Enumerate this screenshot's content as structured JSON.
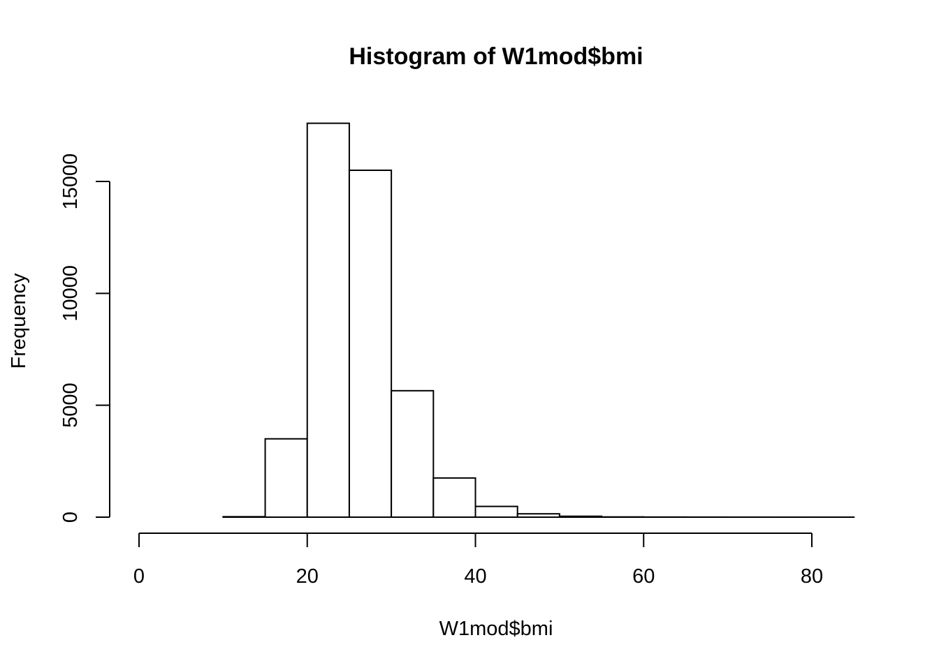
{
  "chart_data": {
    "type": "bar",
    "subtype": "histogram",
    "title": "Histogram of W1mod$bmi",
    "xlabel": "W1mod$bmi",
    "ylabel": "Frequency",
    "bin_edges": [
      0,
      5,
      10,
      15,
      20,
      25,
      30,
      35,
      40,
      45,
      50,
      55,
      60,
      65,
      70,
      75,
      80,
      85
    ],
    "values": [
      0,
      0,
      20,
      3500,
      17600,
      15500,
      5650,
      1750,
      480,
      150,
      40,
      10,
      5,
      3,
      2,
      1,
      1
    ],
    "xlim": [
      0,
      85
    ],
    "ylim": [
      0,
      17600
    ],
    "x_ticks": [
      0,
      20,
      40,
      60,
      80
    ],
    "x_tick_labels": [
      "0",
      "20",
      "40",
      "60",
      "80"
    ],
    "y_ticks": [
      0,
      5000,
      10000,
      15000
    ],
    "y_tick_labels": [
      "0",
      "5000",
      "10000",
      "15000"
    ],
    "grid": false,
    "bar_fill": "#ffffff",
    "bar_stroke": "#000000"
  }
}
